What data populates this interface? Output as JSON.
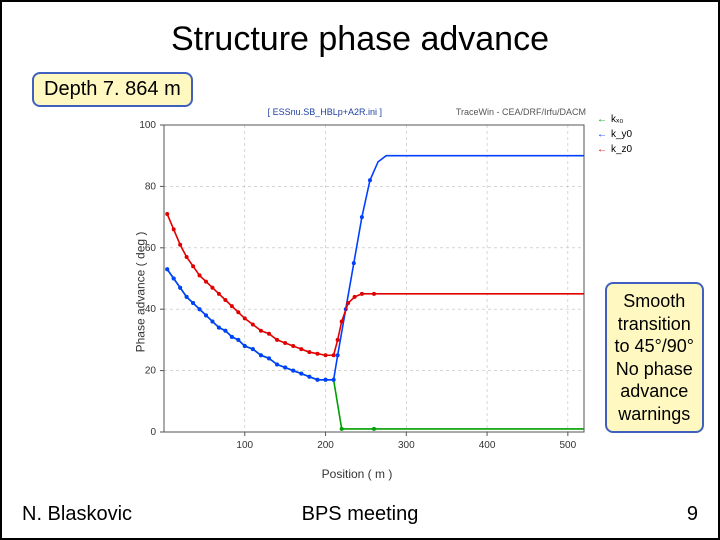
{
  "title": "Structure phase advance",
  "depth_badge": "Depth 7. 864 m",
  "note_badge": "Smooth\ntransition\nto 45°/90°\nNo phase\nadvance\nwarnings",
  "footer": {
    "author": "N. Blaskovic",
    "meeting": "BPS meeting",
    "page": "9"
  },
  "chart": {
    "type": "line",
    "header_left": "[ ESSnu.SB_HBLp+A2R.ini ]",
    "header_right": "TraceWin - CEA/DRF/Irfu/DACM",
    "xlabel": "Position ( m )",
    "ylabel": "Phase advance ( deg )",
    "xlim": [
      0,
      520
    ],
    "ylim": [
      0,
      100
    ],
    "xticks": [
      100,
      200,
      300,
      400,
      500
    ],
    "yticks": [
      0,
      20,
      40,
      60,
      80,
      100
    ],
    "plot_bg": "#ffffff",
    "grid_color": "#bdbdbd",
    "axis_color": "#555555",
    "tick_fontsize": 10,
    "label_fontsize": 12,
    "linewidth": 1.6,
    "marker_size": 2,
    "legend": [
      {
        "label": "kₓ₀",
        "color": "#00a000"
      },
      {
        "label": "k_y0",
        "color": "#0040ff"
      },
      {
        "label": "k_z0",
        "color": "#e00000"
      }
    ],
    "series": [
      {
        "name": "k_x0",
        "color": "#00a000",
        "points": [
          [
            4,
            53
          ],
          [
            12,
            50
          ],
          [
            20,
            47
          ],
          [
            28,
            44
          ],
          [
            36,
            42
          ],
          [
            44,
            40
          ],
          [
            52,
            38
          ],
          [
            60,
            36
          ],
          [
            68,
            34
          ],
          [
            76,
            33
          ],
          [
            84,
            31
          ],
          [
            92,
            30
          ],
          [
            100,
            28
          ],
          [
            110,
            27
          ],
          [
            120,
            25
          ],
          [
            130,
            24
          ],
          [
            140,
            22
          ],
          [
            150,
            21
          ],
          [
            160,
            20
          ],
          [
            170,
            19
          ],
          [
            180,
            18
          ],
          [
            190,
            17
          ],
          [
            200,
            17
          ],
          [
            210,
            17
          ],
          [
            220,
            1
          ],
          [
            260,
            1
          ],
          [
            300,
            1
          ],
          [
            350,
            1
          ],
          [
            400,
            1
          ],
          [
            450,
            1
          ],
          [
            500,
            1
          ],
          [
            520,
            1
          ]
        ]
      },
      {
        "name": "k_y0",
        "color": "#0040ff",
        "points": [
          [
            4,
            53
          ],
          [
            12,
            50
          ],
          [
            20,
            47
          ],
          [
            28,
            44
          ],
          [
            36,
            42
          ],
          [
            44,
            40
          ],
          [
            52,
            38
          ],
          [
            60,
            36
          ],
          [
            68,
            34
          ],
          [
            76,
            33
          ],
          [
            84,
            31
          ],
          [
            92,
            30
          ],
          [
            100,
            28
          ],
          [
            110,
            27
          ],
          [
            120,
            25
          ],
          [
            130,
            24
          ],
          [
            140,
            22
          ],
          [
            150,
            21
          ],
          [
            160,
            20
          ],
          [
            170,
            19
          ],
          [
            180,
            18
          ],
          [
            190,
            17
          ],
          [
            200,
            17
          ],
          [
            210,
            17
          ],
          [
            215,
            25
          ],
          [
            225,
            40
          ],
          [
            235,
            55
          ],
          [
            245,
            70
          ],
          [
            255,
            82
          ],
          [
            265,
            88
          ],
          [
            275,
            90
          ],
          [
            300,
            90
          ],
          [
            350,
            90
          ],
          [
            400,
            90
          ],
          [
            450,
            90
          ],
          [
            500,
            90
          ],
          [
            520,
            90
          ]
        ]
      },
      {
        "name": "k_z0",
        "color": "#e00000",
        "points": [
          [
            4,
            71
          ],
          [
            12,
            66
          ],
          [
            20,
            61
          ],
          [
            28,
            57
          ],
          [
            36,
            54
          ],
          [
            44,
            51
          ],
          [
            52,
            49
          ],
          [
            60,
            47
          ],
          [
            68,
            45
          ],
          [
            76,
            43
          ],
          [
            84,
            41
          ],
          [
            92,
            39
          ],
          [
            100,
            37
          ],
          [
            110,
            35
          ],
          [
            120,
            33
          ],
          [
            130,
            32
          ],
          [
            140,
            30
          ],
          [
            150,
            29
          ],
          [
            160,
            28
          ],
          [
            170,
            27
          ],
          [
            180,
            26
          ],
          [
            190,
            25.5
          ],
          [
            200,
            25
          ],
          [
            210,
            25
          ],
          [
            215,
            30
          ],
          [
            220,
            36
          ],
          [
            228,
            42
          ],
          [
            236,
            44
          ],
          [
            245,
            45
          ],
          [
            260,
            45
          ],
          [
            300,
            45
          ],
          [
            350,
            45
          ],
          [
            400,
            45
          ],
          [
            450,
            45
          ],
          [
            500,
            45
          ],
          [
            520,
            45
          ]
        ]
      }
    ]
  }
}
